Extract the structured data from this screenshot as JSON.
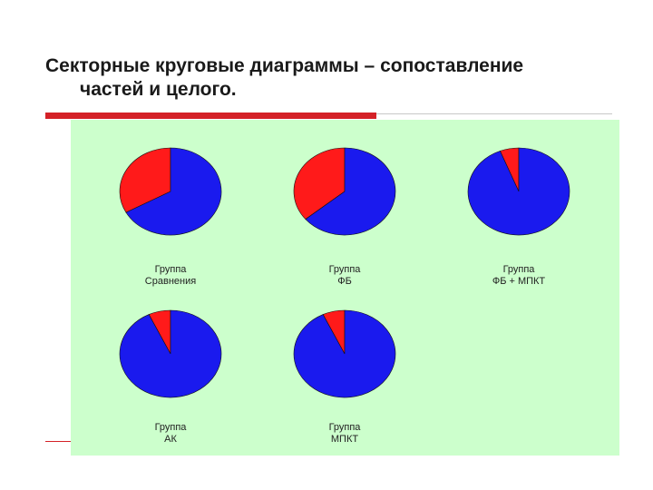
{
  "slide": {
    "title_line1": "Секторные круговые диаграммы – сопоставление",
    "title_line2": "частей и целого."
  },
  "colors": {
    "part": "#ff1a1a",
    "rest": "#1a1aee",
    "panel_bg": "#ccffcc",
    "accent_bar": "#d42127"
  },
  "chart_data": [
    {
      "type": "pie",
      "label_lines": [
        "Группа",
        "Сравнения"
      ],
      "slices": [
        {
          "value": 33,
          "color": "#ff1a1a"
        },
        {
          "value": 67,
          "color": "#1a1aee"
        }
      ]
    },
    {
      "type": "pie",
      "label_lines": [
        "Группа",
        "ФБ"
      ],
      "slices": [
        {
          "value": 36,
          "color": "#ff1a1a"
        },
        {
          "value": 64,
          "color": "#1a1aee"
        }
      ]
    },
    {
      "type": "pie",
      "label_lines": [
        "Группа",
        "ФБ + МПКТ"
      ],
      "slices": [
        {
          "value": 6,
          "color": "#ff1a1a"
        },
        {
          "value": 94,
          "color": "#1a1aee"
        }
      ]
    },
    {
      "type": "pie",
      "label_lines": [
        "Группа",
        "АК"
      ],
      "slices": [
        {
          "value": 7,
          "color": "#ff1a1a"
        },
        {
          "value": 93,
          "color": "#1a1aee"
        }
      ]
    },
    {
      "type": "pie",
      "label_lines": [
        "Группа",
        "МПКТ"
      ],
      "slices": [
        {
          "value": 7,
          "color": "#ff1a1a"
        },
        {
          "value": 93,
          "color": "#1a1aee"
        }
      ]
    }
  ]
}
